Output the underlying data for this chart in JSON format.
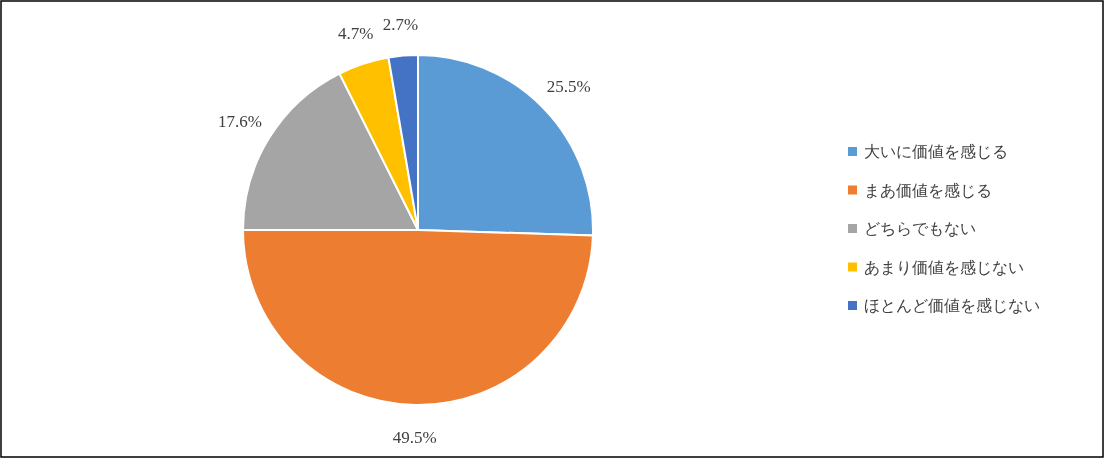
{
  "chart_data": {
    "type": "pie",
    "categories": [
      "大いに価値を感じる",
      "まあ価値を感じる",
      "どちらでもない",
      "あまり価値を感じない",
      "ほとんど価値を感じない"
    ],
    "values": [
      25.5,
      49.5,
      17.6,
      4.7,
      2.7
    ],
    "colors": [
      "#5b9bd5",
      "#ed7d31",
      "#a5a5a5",
      "#ffc000",
      "#4472c4"
    ],
    "value_labels": [
      "25.5%",
      "49.5%",
      "17.6%",
      "4.7%",
      "2.7%"
    ],
    "legend": "right"
  }
}
